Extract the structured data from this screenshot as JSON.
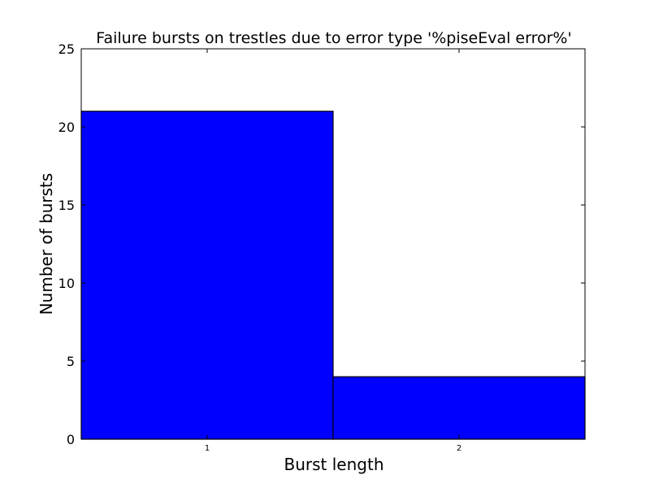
{
  "chart_data": {
    "type": "bar",
    "title": "Failure bursts on trestles due to error type '%piseEval error%'",
    "xlabel": "Burst length",
    "ylabel": "Number of bursts",
    "categories": [
      "1",
      "2"
    ],
    "series": [
      {
        "values": [
          21,
          4
        ]
      }
    ],
    "ylim": [
      0,
      25
    ],
    "yticks": [
      "0",
      "5",
      "10",
      "15",
      "20",
      "25"
    ],
    "bar_color": "#0000ff",
    "grid": false,
    "legend": "none"
  }
}
